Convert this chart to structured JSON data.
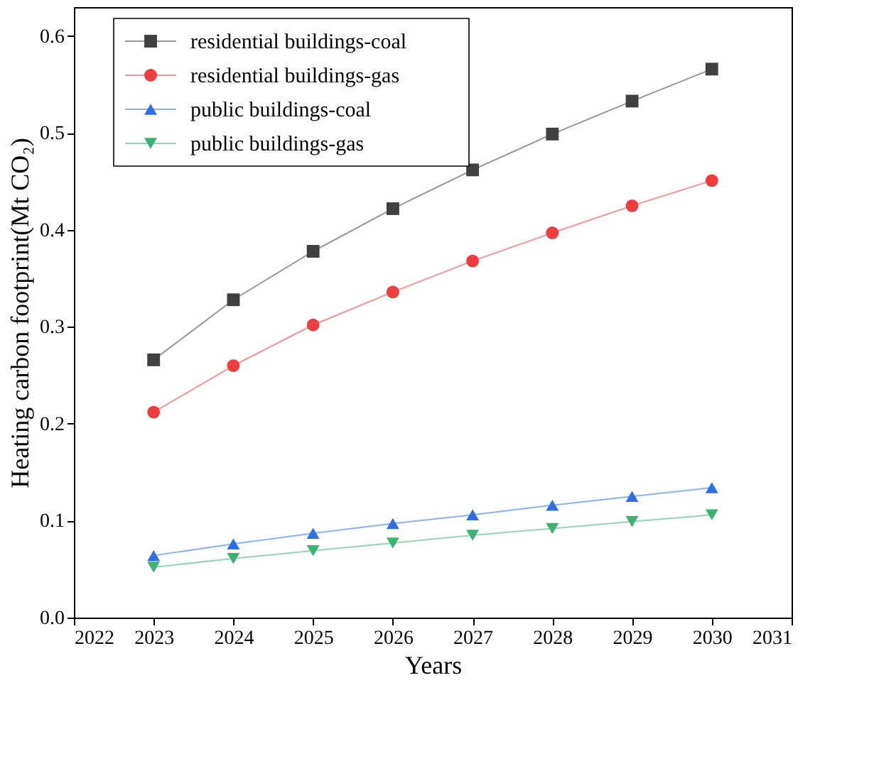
{
  "chart_data": {
    "type": "line",
    "xlabel": "Years",
    "ylabel": "Heating carbon footprint(Mt CO₂)",
    "x": [
      2023,
      2024,
      2025,
      2026,
      2027,
      2028,
      2029,
      2030
    ],
    "series": [
      {
        "name": "residential buildings-coal",
        "color": "#404040",
        "marker": "square",
        "values": [
          0.266,
          0.328,
          0.378,
          0.422,
          0.462,
          0.499,
          0.533,
          0.566
        ]
      },
      {
        "name": "residential buildings-gas",
        "color": "#f03c3c",
        "marker": "circle",
        "values": [
          0.212,
          0.26,
          0.302,
          0.336,
          0.368,
          0.397,
          0.425,
          0.451
        ]
      },
      {
        "name": "public buildings-coal",
        "color": "#2f6fe6",
        "marker": "triangle",
        "values": [
          0.064,
          0.076,
          0.087,
          0.097,
          0.106,
          0.116,
          0.125,
          0.134
        ]
      },
      {
        "name": "public buildings-gas",
        "color": "#3cb371",
        "marker": "triangle-down",
        "values": [
          0.052,
          0.061,
          0.069,
          0.077,
          0.085,
          0.092,
          0.099,
          0.106
        ]
      }
    ],
    "xlim": [
      2022,
      2031
    ],
    "xticks": [
      2022,
      2023,
      2024,
      2025,
      2026,
      2027,
      2028,
      2029,
      2030,
      2031
    ],
    "ylim": [
      0,
      0.63
    ],
    "yticks": [
      {
        "value": 0,
        "label": "0.0"
      },
      {
        "value": 0.1,
        "label": "0.1"
      },
      {
        "value": 0.2,
        "label": "0.2"
      },
      {
        "value": 0.3,
        "label": "0.3"
      },
      {
        "value": 0.4,
        "label": "0.4"
      },
      {
        "value": 0.5,
        "label": "0.5"
      },
      {
        "value": 0.6,
        "label": "0.6"
      }
    ],
    "grid": false,
    "legend": "top left",
    "line_style": "solid"
  }
}
